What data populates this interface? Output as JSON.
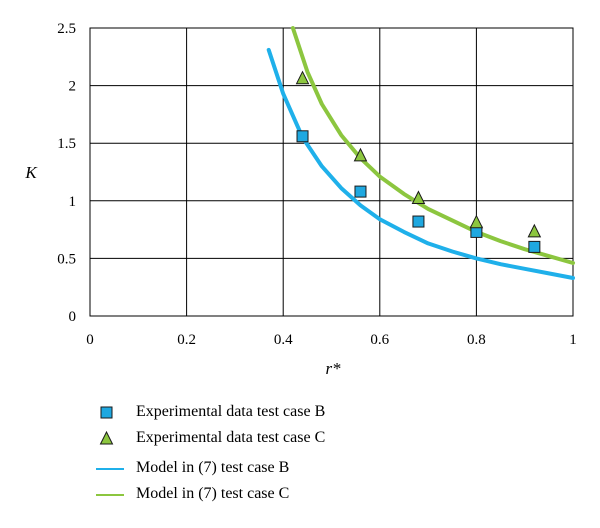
{
  "chart_data": {
    "type": "scatter",
    "xlabel": "r*",
    "ylabel": "K",
    "xlim": [
      0,
      1
    ],
    "ylim": [
      0,
      2.5
    ],
    "x_ticks": [
      "0",
      "0.2",
      "0.4",
      "0.6",
      "0.8",
      "1"
    ],
    "y_ticks": [
      "0",
      "0.5",
      "1",
      "1.5",
      "2",
      "2.5"
    ],
    "grid": true,
    "legend_position": "bottom",
    "series": [
      {
        "name": "Experimental data test case B",
        "kind": "points",
        "marker": "square",
        "color": "#1fa8e0",
        "x": [
          0.44,
          0.56,
          0.68,
          0.8,
          0.92
        ],
        "y": [
          1.56,
          1.08,
          0.82,
          0.73,
          0.6
        ]
      },
      {
        "name": "Experimental data test case C",
        "kind": "points",
        "marker": "triangle",
        "color": "#8cc63f",
        "x": [
          0.44,
          0.56,
          0.68,
          0.8,
          0.92
        ],
        "y": [
          2.06,
          1.39,
          1.02,
          0.81,
          0.73
        ]
      },
      {
        "name": "Model in (7) test case B",
        "kind": "line",
        "color": "#1fb0ea",
        "x": [
          0.37,
          0.4,
          0.44,
          0.48,
          0.52,
          0.56,
          0.6,
          0.65,
          0.7,
          0.75,
          0.8,
          0.85,
          0.9,
          0.95,
          1.0
        ],
        "y": [
          2.31,
          1.93,
          1.55,
          1.3,
          1.11,
          0.96,
          0.84,
          0.73,
          0.63,
          0.56,
          0.5,
          0.45,
          0.41,
          0.37,
          0.33
        ]
      },
      {
        "name": "Model in (7) test case C",
        "kind": "line",
        "color": "#8cc63f",
        "x": [
          0.42,
          0.45,
          0.48,
          0.52,
          0.56,
          0.6,
          0.65,
          0.7,
          0.75,
          0.8,
          0.85,
          0.9,
          0.95,
          1.0
        ],
        "y": [
          2.5,
          2.12,
          1.84,
          1.57,
          1.37,
          1.21,
          1.06,
          0.93,
          0.83,
          0.73,
          0.65,
          0.58,
          0.52,
          0.46
        ]
      }
    ]
  }
}
